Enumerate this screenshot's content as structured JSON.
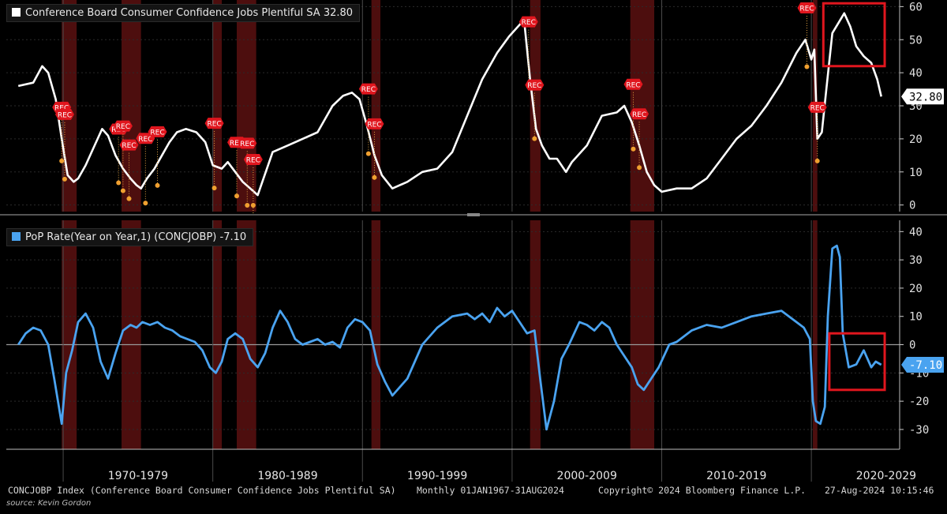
{
  "chart_data": [
    {
      "type": "line",
      "legend": "Conference Board Consumer Confidence Jobs Plentiful SA 32.80",
      "last_value_label": "32.80",
      "color": "#ffffff",
      "ylim": [
        -2,
        62
      ],
      "y_ticks": [
        "0",
        "10",
        "20",
        "30",
        "40",
        "50",
        "60"
      ],
      "recession_marker_label": "REC",
      "highlight_color": "#e0161e",
      "series": [
        {
          "x": [
            1967.0,
            1968.0,
            1968.6,
            1969.0,
            1969.5,
            1969.9,
            1970.3,
            1970.7,
            1971.0,
            1971.5,
            1972.0,
            1972.6,
            1973.0,
            1973.5,
            1974.0,
            1974.5,
            1974.9,
            1975.2,
            1975.6,
            1976.1,
            1976.6,
            1977.1,
            1977.6,
            1978.2,
            1978.9,
            1979.5,
            1980.0,
            1980.6,
            1981.0,
            1981.5,
            1982.0,
            1982.5,
            1983.0,
            1984.0,
            1985.0,
            1986.0,
            1987.0,
            1988.0,
            1988.7,
            1989.3,
            1989.8,
            1990.3,
            1990.8,
            1991.3,
            1992.0,
            1993.0,
            1994.0,
            1995.0,
            1996.0,
            1997.0,
            1998.0,
            1999.0,
            1999.8,
            2000.4,
            2000.8,
            2001.2,
            2001.6,
            2002.0,
            2002.5,
            2003.0,
            2003.6,
            2004.0,
            2005.0,
            2006.0,
            2007.0,
            2007.5,
            2008.0,
            2008.5,
            2009.0,
            2009.5,
            2010.0,
            2011.0,
            2012.0,
            2013.0,
            2014.0,
            2015.0,
            2016.0,
            2017.0,
            2018.0,
            2019.0,
            2019.6,
            2020.0,
            2020.2,
            2020.4,
            2020.7,
            2021.0,
            2021.4,
            2021.8,
            2022.2,
            2022.6,
            2023.0,
            2023.5,
            2024.0,
            2024.4,
            2024.67
          ],
          "y": [
            36,
            37,
            42,
            40,
            32,
            20,
            9,
            7,
            8,
            12,
            17,
            23,
            21,
            15,
            11,
            8,
            6,
            5,
            8,
            11,
            15,
            19,
            22,
            23,
            22,
            19,
            12,
            11,
            13,
            10,
            7,
            5,
            3,
            16,
            18,
            20,
            22,
            30,
            33,
            34,
            32,
            24,
            15,
            9,
            5,
            7,
            10,
            11,
            16,
            27,
            38,
            46,
            51,
            54,
            56,
            38,
            23,
            18,
            14,
            14,
            10,
            13,
            18,
            27,
            28,
            30,
            25,
            18,
            10,
            6,
            4,
            5,
            5,
            8,
            14,
            20,
            24,
            30,
            37,
            46,
            50,
            44,
            47,
            20,
            22,
            35,
            52,
            55,
            58,
            54,
            48,
            45,
            43,
            38,
            32.8
          ]
        }
      ],
      "rec_markers": [
        1969.9,
        1970.1,
        1973.7,
        1974.0,
        1974.4,
        1975.5,
        1976.3,
        1980.1,
        1981.6,
        1982.3,
        1982.7,
        1990.4,
        1990.8,
        2001.1,
        2001.5,
        2008.1,
        2008.5,
        2019.7,
        2020.4
      ]
    },
    {
      "type": "line",
      "legend": "PoP Rate(Year on Year,1) (CONCJOBP) -7.10",
      "last_value_label": "-7.10",
      "color": "#4aa3f0",
      "ylim": [
        -37,
        44
      ],
      "y_ticks": [
        "-30",
        "-20",
        "-10",
        "0",
        "10",
        "20",
        "30",
        "40"
      ],
      "highlight_color": "#e0161e",
      "series": [
        {
          "x": [
            1967.0,
            1967.5,
            1968.0,
            1968.5,
            1969.0,
            1969.4,
            1969.9,
            1970.2,
            1970.6,
            1971.0,
            1971.5,
            1972.0,
            1972.5,
            1973.0,
            1973.5,
            1974.0,
            1974.5,
            1974.9,
            1975.3,
            1975.8,
            1976.3,
            1976.8,
            1977.3,
            1977.8,
            1978.3,
            1978.8,
            1979.3,
            1979.8,
            1980.2,
            1980.6,
            1981.0,
            1981.5,
            1982.0,
            1982.5,
            1983.0,
            1983.5,
            1984.0,
            1984.5,
            1985.0,
            1985.5,
            1986.0,
            1986.5,
            1987.0,
            1987.5,
            1988.0,
            1988.5,
            1989.0,
            1989.5,
            1990.0,
            1990.5,
            1991.0,
            1991.5,
            1992.0,
            1993.0,
            1994.0,
            1995.0,
            1996.0,
            1997.0,
            1997.5,
            1998.0,
            1998.5,
            1999.0,
            1999.5,
            2000.0,
            2000.5,
            2001.0,
            2001.5,
            2001.9,
            2002.3,
            2002.8,
            2003.3,
            2003.8,
            2004.5,
            2005.0,
            2005.5,
            2006.0,
            2006.5,
            2007.0,
            2007.5,
            2008.0,
            2008.4,
            2008.8,
            2009.3,
            2009.8,
            2010.5,
            2011.0,
            2012.0,
            2013.0,
            2014.0,
            2015.0,
            2016.0,
            2017.0,
            2018.0,
            2018.5,
            2019.0,
            2019.5,
            2019.9,
            2020.1,
            2020.3,
            2020.6,
            2020.9,
            2021.1,
            2021.4,
            2021.7,
            2021.9,
            2022.1,
            2022.5,
            2023.0,
            2023.5,
            2024.0,
            2024.3,
            2024.67
          ],
          "y": [
            0,
            4,
            6,
            5,
            0,
            -12,
            -28,
            -10,
            -2,
            8,
            11,
            6,
            -6,
            -12,
            -3,
            5,
            7,
            6,
            8,
            7,
            8,
            6,
            5,
            3,
            2,
            1,
            -2,
            -8,
            -10,
            -6,
            2,
            4,
            2,
            -5,
            -8,
            -3,
            6,
            12,
            8,
            2,
            0,
            1,
            2,
            0,
            1,
            -1,
            6,
            9,
            8,
            5,
            -7,
            -13,
            -18,
            -12,
            0,
            6,
            10,
            11,
            9,
            11,
            8,
            13,
            10,
            12,
            8,
            4,
            5,
            -13,
            -30,
            -20,
            -5,
            0,
            8,
            7,
            5,
            8,
            6,
            0,
            -4,
            -8,
            -14,
            -16,
            -12,
            -8,
            0,
            1,
            5,
            7,
            6,
            8,
            10,
            11,
            12,
            10,
            8,
            6,
            2,
            -20,
            -27,
            -28,
            -22,
            10,
            34,
            35,
            31,
            4,
            -8,
            -7,
            -2,
            -8,
            -6,
            -7.1
          ]
        }
      ]
    }
  ],
  "x_axis": {
    "range": [
      1966.2,
      2025.9
    ],
    "decade_labels": [
      "1970-1979",
      "1980-1989",
      "1990-1999",
      "2000-2009",
      "2010-2019",
      "2020-2029"
    ],
    "decade_label_positions": [
      1975,
      1985,
      1995,
      2005,
      2015,
      2025
    ],
    "decade_boundaries": [
      1970,
      1980,
      1990,
      2000,
      2010,
      2020
    ]
  },
  "recessions": [
    [
      1969.9,
      1970.9
    ],
    [
      1973.9,
      1975.2
    ],
    [
      1980.0,
      1980.6
    ],
    [
      1981.6,
      1982.9
    ],
    [
      1990.6,
      1991.2
    ],
    [
      2001.2,
      2001.9
    ],
    [
      2007.9,
      2009.5
    ],
    [
      2020.1,
      2020.4
    ]
  ],
  "footer": {
    "index_text": "CONCJOBP Index (Conference Board Consumer Confidence Jobs Plentiful SA)",
    "period_text": "Monthly 01JAN1967-31AUG2024",
    "copyright_text": "Copyright© 2024 Bloomberg Finance L.P.",
    "timestamp_text": "27-Aug-2024 10:15:46",
    "source_text": "source: Kevin Gordon"
  }
}
